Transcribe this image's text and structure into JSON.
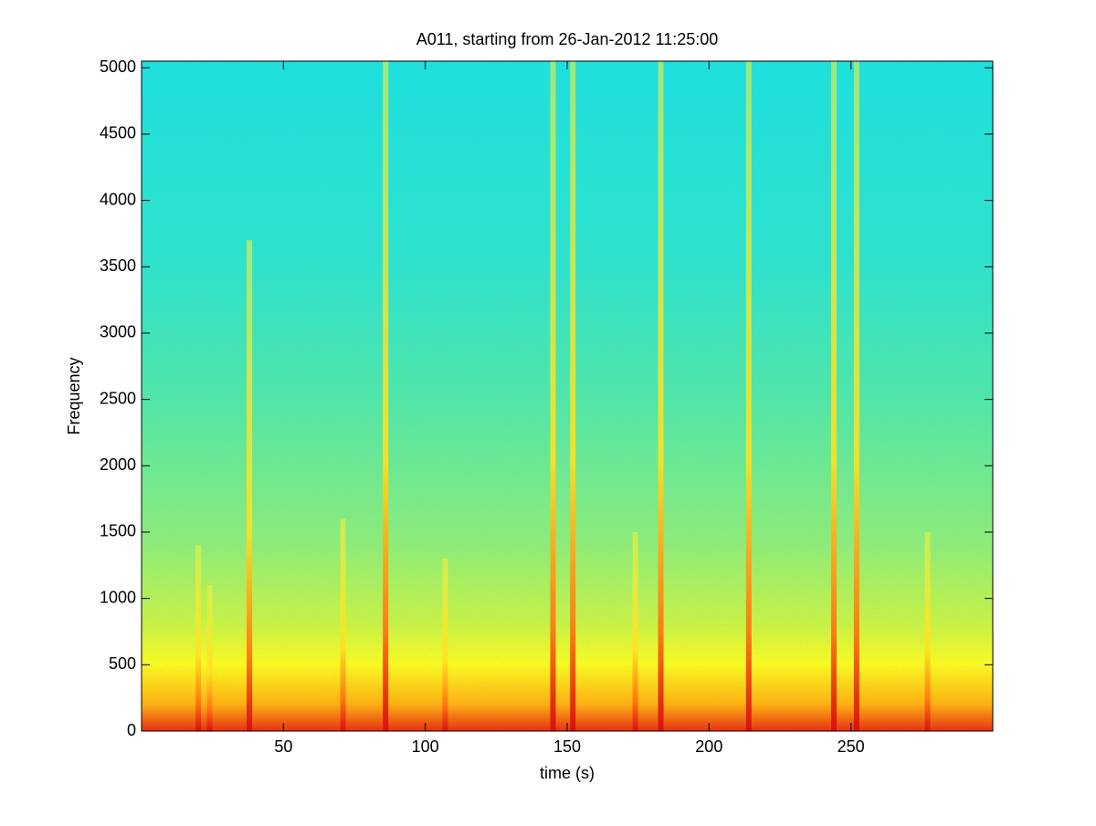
{
  "chart_data": {
    "type": "spectrogram",
    "title": "A011, starting from 26-Jan-2012 11:25:00",
    "xlabel": "time (s)",
    "ylabel": "Frequency",
    "x": [
      20,
      24,
      38,
      71,
      86,
      107,
      145,
      152,
      174,
      183,
      214,
      244,
      252,
      277
    ],
    "values": [
      1400,
      1100,
      3700,
      1600,
      5050,
      1300,
      5050,
      5050,
      1500,
      5050,
      5050,
      5050,
      5050,
      1500
    ],
    "xlim": [
      0,
      300
    ],
    "ylim": [
      0,
      5050
    ],
    "xticks": [
      50,
      100,
      150,
      200,
      250
    ],
    "yticks": [
      0,
      500,
      1000,
      1500,
      2000,
      2500,
      3000,
      3500,
      4000,
      4500,
      5000
    ]
  }
}
